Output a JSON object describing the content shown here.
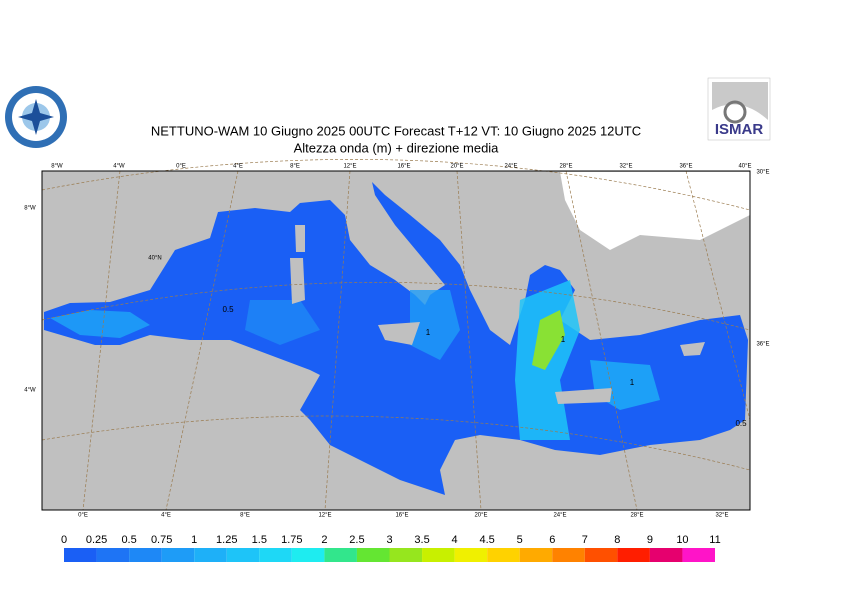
{
  "header": {
    "title": "NETTUNO-WAM  10   Giugno  2025 00UTC Forecast T+12 VT: 10   Giugno  2025 12UTC",
    "subtitle": "Altezza onda (m) + direzione media"
  },
  "logos": {
    "right": "ISMAR"
  },
  "map": {
    "top_labels": [
      "8°W",
      "4°W",
      "0°E",
      "4°E",
      "8°E",
      "12°E",
      "16°E",
      "20°E",
      "24°E",
      "28°E",
      "32°E",
      "36°E",
      "40°E"
    ],
    "right_labels": [
      "30°E",
      "36°E"
    ],
    "left_labels": [
      "8°W",
      "4°W"
    ],
    "lat_labels": [
      "40°N"
    ],
    "bottom_labels": [
      "0°E",
      "4°E",
      "8°E",
      "12°E",
      "16°E",
      "20°E",
      "24°E",
      "28°E",
      "32°E"
    ],
    "contour_labels": [
      "0.5",
      "1",
      "1",
      "1",
      "0.5"
    ]
  },
  "legend": {
    "ticks": [
      0,
      0.25,
      0.5,
      0.75,
      1,
      1.25,
      1.5,
      1.75,
      2,
      2.5,
      3,
      3.5,
      4,
      4.5,
      5,
      6,
      7,
      8,
      9,
      10,
      11
    ],
    "colors": [
      "#1a5ff5",
      "#1e74f5",
      "#1e88f6",
      "#1e9cf7",
      "#1eb0f8",
      "#1ec4f8",
      "#1ed8f6",
      "#1eecf0",
      "#32e68c",
      "#64e632",
      "#96e61e",
      "#c8f000",
      "#f0f000",
      "#ffd200",
      "#ffaa00",
      "#ff8200",
      "#ff5000",
      "#ff1e00",
      "#e6006e",
      "#ff14c8"
    ]
  }
}
